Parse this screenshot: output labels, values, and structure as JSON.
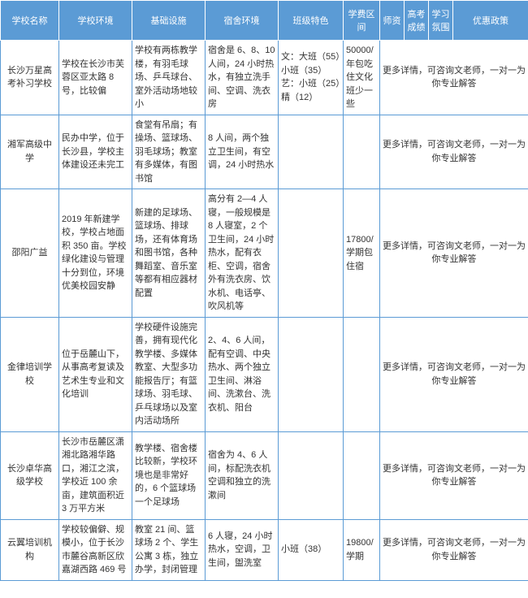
{
  "header_bg": "#5b9bd5",
  "header_fg": "#ffffff",
  "border_color": "#5b9bd5",
  "columns": [
    {
      "key": "name",
      "label": "学校名称"
    },
    {
      "key": "env",
      "label": "学校环境"
    },
    {
      "key": "infra",
      "label": "基础设施"
    },
    {
      "key": "dorm",
      "label": "宿舍环境"
    },
    {
      "key": "class",
      "label": "班级特色"
    },
    {
      "key": "fee",
      "label": "学费区间"
    },
    {
      "key": "teacher",
      "label": "师资"
    },
    {
      "key": "score",
      "label": "高考成绩"
    },
    {
      "key": "atmo",
      "label": "学习氛围"
    },
    {
      "key": "policy",
      "label": "优惠政策"
    }
  ],
  "contact_text": "更多详情，可咨询文老师，一对一为你专业解答",
  "rows": [
    {
      "name": "长沙万星高考补习学校",
      "env": "学校在长沙市芙蓉区亚太路 8 号，比较偏",
      "infra": "学校有两栋教学楼，有羽毛球场、乒乓球台、室外活动场地较小",
      "dorm": "宿舍是 6、8、10 人间，24 小时热水，有独立洗手间、空调、洗衣房",
      "class": "文：大班（55）小班（35）艺：小班（25）精（12）",
      "fee": "50000/年包吃住文化班少一些"
    },
    {
      "name": "湘军高级中学",
      "env": "民办中学，位于长沙县，学校主体建设还未完工",
      "infra": "食堂有吊扇；有操场、篮球场、羽毛球场；教室有多媒体，有图书馆",
      "dorm": "8 人间，两个独立卫生间，有空调，24 小时热水",
      "class": "",
      "fee": ""
    },
    {
      "name": "邵阳广益",
      "env": "2019 年新建学校，学校占地面积 350 亩。学校绿化建设与管理十分到位，环境优美校园安静",
      "infra": "新建的足球场、篮球场、排球场，还有体育场和图书馆，各种舞蹈室、音乐室等都有相应器材配置",
      "dorm": "高分有 2—4 人寝，一般规模是 8 人寝室，2 个卫生间，24 小时热水，配有衣柜、空调，宿舍外有洗衣房、饮水机、电话亭、吹风机等",
      "class": "",
      "fee": "17800/学期包住宿"
    },
    {
      "name": "金律培训学校",
      "env": "位于岳麓山下，从事高考复读及艺术生专业和文化培训",
      "infra": "学校硬件设施完善，拥有现代化教学楼、多媒体教室、大型多功能报告厅；有篮球场、羽毛球、乒乓球场以及室内活动场所",
      "dorm": "2、4、6 人间，配有空调、中央热水、两个独立卫生间、淋浴间、洗漱台、洗衣机、阳台",
      "class": "",
      "fee": ""
    },
    {
      "name": "长沙卓华高级学校",
      "env": "长沙市岳麓区潇湘北路湘华路口，湘江之滨，学校近 100 余亩，建筑面积近 3 万平方米",
      "infra": "教学楼、宿舍楼比较新，学校环境也是非常好的，6 个篮球场一个足球场",
      "dorm": "宿舍为 4、6 人间，标配洗衣机空调和独立的洗漱间",
      "class": "",
      "fee": ""
    },
    {
      "name": "云翼培训机构",
      "env": "学校较偏僻、规模小，位于长沙市麓谷高新区欣嘉湖西路 469 号",
      "infra": "教室 21 间、篮球场 2 个、学生公寓 3 栋，独立办学，封闭管理",
      "dorm": "6 人寝，24 小时热水，空调，卫生间，盥洗室",
      "class": "小班（38）",
      "fee": "19800/学期"
    }
  ]
}
